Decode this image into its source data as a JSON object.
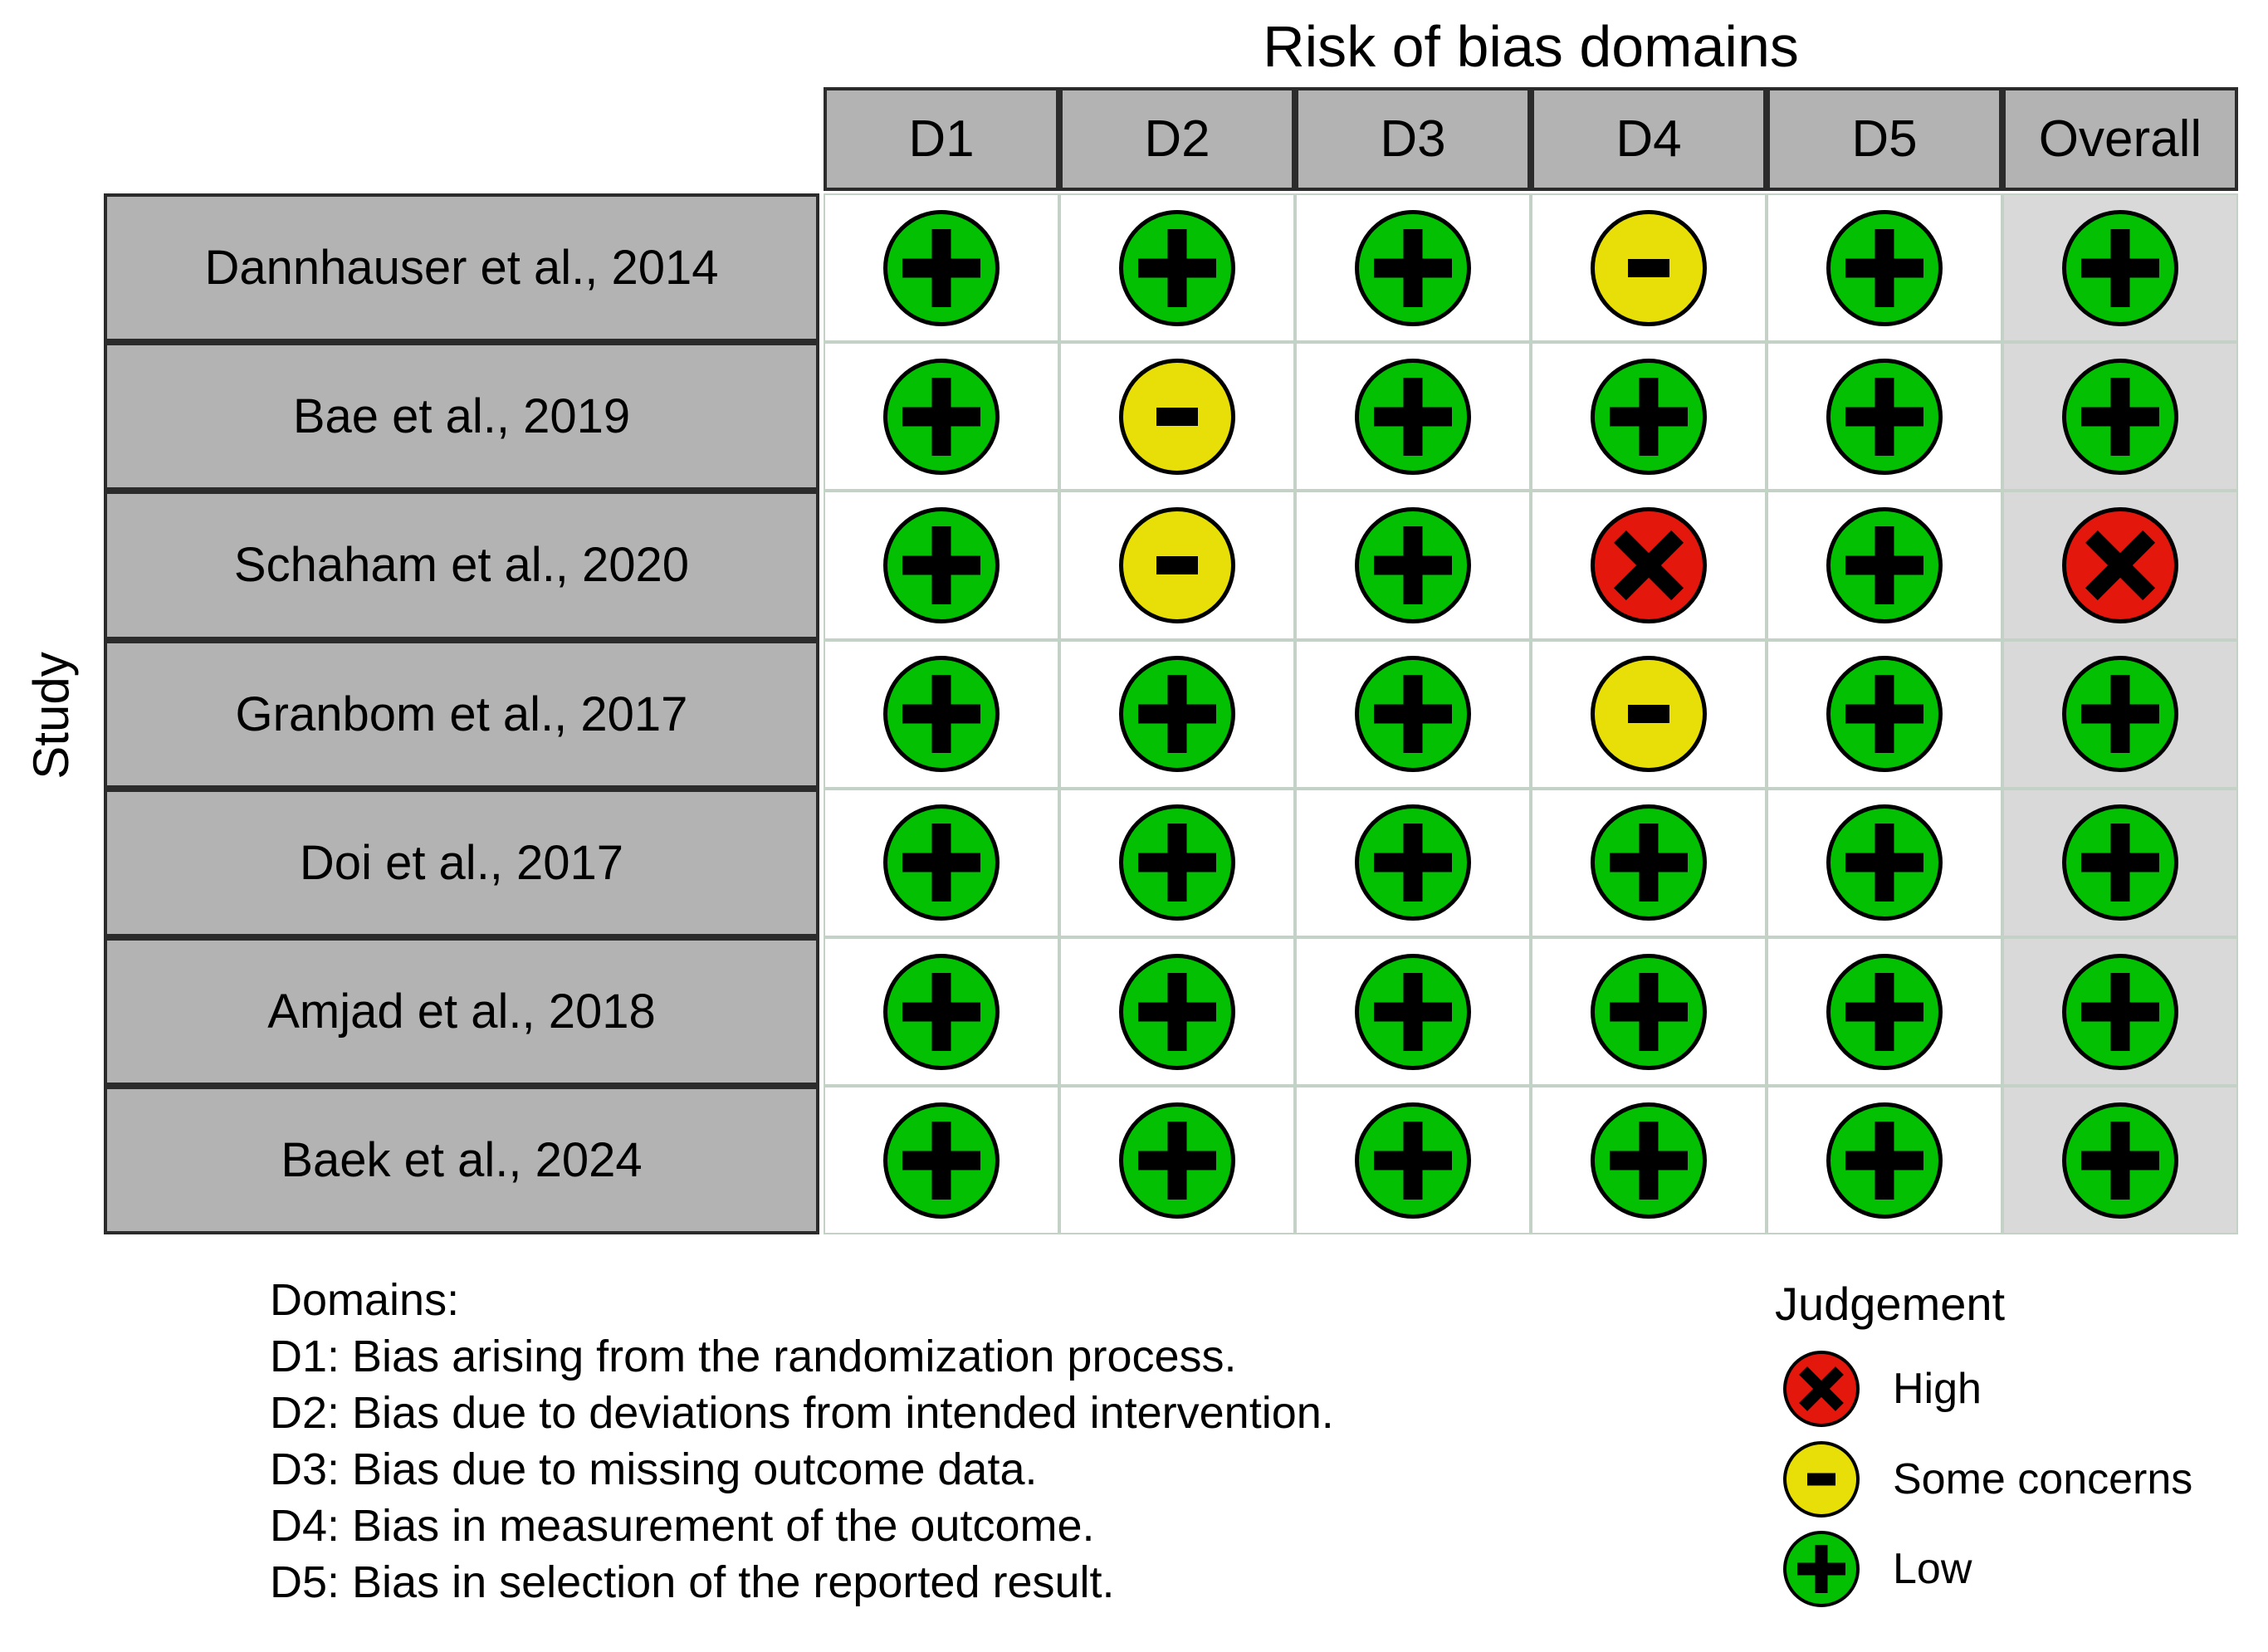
{
  "chart_data": {
    "type": "table",
    "title": "Risk of bias domains",
    "row_label": "Study",
    "columns": [
      "D1",
      "D2",
      "D3",
      "D4",
      "D5",
      "Overall"
    ],
    "rows": [
      {
        "study": "Dannhauser et al., 2014",
        "judgements": [
          "Low",
          "Low",
          "Low",
          "Some concerns",
          "Low",
          "Low"
        ]
      },
      {
        "study": "Bae et al., 2019",
        "judgements": [
          "Low",
          "Some concerns",
          "Low",
          "Low",
          "Low",
          "Low"
        ]
      },
      {
        "study": "Schaham et al., 2020",
        "judgements": [
          "Low",
          "Some concerns",
          "Low",
          "High",
          "Low",
          "High"
        ]
      },
      {
        "study": "Granbom et al., 2017",
        "judgements": [
          "Low",
          "Low",
          "Low",
          "Some concerns",
          "Low",
          "Low"
        ]
      },
      {
        "study": "Doi et al., 2017",
        "judgements": [
          "Low",
          "Low",
          "Low",
          "Low",
          "Low",
          "Low"
        ]
      },
      {
        "study": "Amjad et al., 2018",
        "judgements": [
          "Low",
          "Low",
          "Low",
          "Low",
          "Low",
          "Low"
        ]
      },
      {
        "study": "Baek et al., 2024",
        "judgements": [
          "Low",
          "Low",
          "Low",
          "Low",
          "Low",
          "Low"
        ]
      }
    ],
    "legend_position": "bottom-right",
    "grid": "light row and column separators in judgement area"
  },
  "judgement_styles": {
    "Low": {
      "symbol": "plus",
      "glyph": "+",
      "color": "#03c003"
    },
    "Some concerns": {
      "symbol": "minus",
      "glyph": "-",
      "color": "#e7df07"
    },
    "High": {
      "symbol": "x",
      "glyph": "X",
      "color": "#e3170c"
    }
  },
  "legend": {
    "title": "Judgement",
    "entries": [
      {
        "label": "High",
        "judgement": "High"
      },
      {
        "label": "Some concerns",
        "judgement": "Some concerns"
      },
      {
        "label": "Low",
        "judgement": "Low"
      }
    ]
  },
  "domains_note": {
    "heading": "Domains:",
    "lines": [
      "D1: Bias arising from the randomization process.",
      "D2: Bias due to deviations from intended intervention.",
      "D3: Bias due to missing outcome data.",
      "D4: Bias in measurement of the outcome.",
      "D5: Bias in selection of the reported result."
    ]
  },
  "colors": {
    "header_fill": "#b3b3b3",
    "study_fill": "#b3b3b3",
    "overall_column_fill": "#d9d9d9",
    "body_fill": "#ffffff",
    "grid_line": "#c3d1c6",
    "cell_border": "#2b2b2b",
    "low_green": "#03c003",
    "some_concerns_yellow": "#e7df07",
    "high_red": "#e3170c",
    "symbol_color": "#000000"
  }
}
